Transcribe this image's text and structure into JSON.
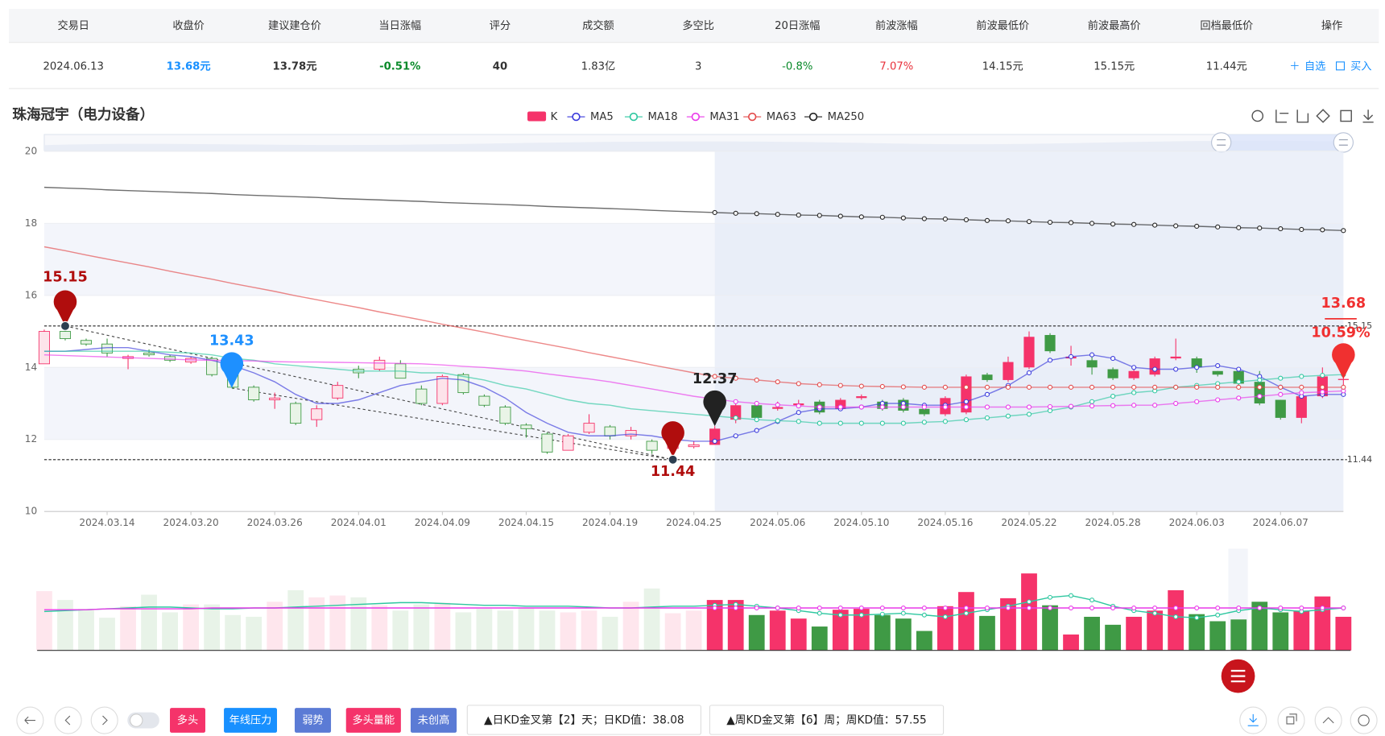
{
  "table": {
    "headers": [
      "交易日",
      "收盘价",
      "建议建仓价",
      "当日涨幅",
      "评分",
      "成交额",
      "多空比",
      "20日涨幅",
      "前波涨幅",
      "前波最低价",
      "前波最高价",
      "回档最低价",
      "操作"
    ],
    "row": [
      "2024.06.13",
      "13.68元",
      "13.78元",
      "-0.51%",
      "40",
      "1.83亿",
      "3",
      "-0.8%",
      "7.07%",
      "14.15元",
      "15.15元",
      "11.44元"
    ],
    "actions": [
      "自选",
      "买入"
    ]
  },
  "chart_data": {
    "type": "candlestick",
    "title": "珠海冠宇（电力设备）",
    "categories": [
      null,
      null,
      null,
      "2024.03.14",
      null,
      null,
      null,
      "2024.03.20",
      null,
      null,
      null,
      "2024.03.26",
      null,
      null,
      null,
      "2024.04.01",
      null,
      null,
      null,
      "2024.04.09",
      null,
      null,
      null,
      "2024.04.15",
      null,
      null,
      null,
      "2024.04.19",
      null,
      null,
      null,
      "2024.04.25",
      null,
      null,
      null,
      "2024.05.06",
      null,
      null,
      null,
      "2024.05.10",
      null,
      null,
      null,
      "2024.05.16",
      null,
      null,
      null,
      "2024.05.22",
      null,
      null,
      null,
      "2024.05.28",
      null,
      null,
      null,
      "2024.06.03",
      null,
      null,
      null,
      "2024.06.07",
      null,
      null,
      null
    ],
    "ylim": [
      10,
      20
    ],
    "yticks": [
      10,
      12,
      14,
      16,
      18,
      20
    ],
    "grid": true,
    "candles": {
      "name": "K",
      "color_up": "#f5336a",
      "color_down": "#3f9a45",
      "open": [
        14.1,
        15.0,
        14.75,
        14.65,
        14.25,
        14.4,
        14.3,
        14.15,
        14.25,
        14.0,
        13.45,
        13.1,
        13.0,
        12.55,
        13.15,
        13.95,
        13.95,
        14.1,
        13.4,
        13.0,
        13.8,
        13.2,
        12.9,
        12.4,
        12.15,
        11.7,
        12.2,
        12.35,
        12.1,
        11.95,
        11.75,
        11.8,
        11.85,
        12.55,
        12.95,
        12.85,
        12.95,
        13.05,
        12.85,
        13.15,
        13.05,
        13.1,
        12.85,
        12.7,
        12.75,
        13.8,
        13.65,
        14.0,
        14.9,
        14.25,
        14.2,
        13.95,
        13.7,
        13.8,
        14.25,
        14.25,
        13.9,
        13.9,
        13.6,
        13.1,
        12.6,
        13.2,
        13.65
      ],
      "high": [
        15.05,
        15.15,
        14.8,
        14.8,
        14.35,
        14.5,
        14.35,
        14.3,
        14.3,
        14.1,
        13.5,
        13.3,
        13.05,
        12.95,
        13.6,
        14.05,
        14.3,
        14.2,
        13.5,
        13.8,
        13.85,
        13.25,
        12.95,
        12.45,
        12.2,
        12.15,
        12.7,
        12.4,
        12.35,
        12.0,
        12.1,
        11.95,
        12.37,
        13.0,
        13.0,
        13.05,
        13.1,
        13.1,
        13.15,
        13.25,
        13.1,
        13.15,
        12.9,
        13.2,
        13.8,
        13.85,
        14.3,
        15.0,
        14.95,
        14.6,
        14.3,
        14.0,
        13.95,
        14.3,
        14.8,
        14.3,
        13.9,
        13.95,
        13.9,
        13.1,
        13.25,
        14.0,
        13.85
      ],
      "low": [
        14.1,
        14.75,
        14.6,
        14.3,
        13.95,
        14.3,
        14.15,
        14.1,
        13.75,
        13.4,
        13.05,
        12.85,
        12.4,
        12.35,
        13.1,
        13.7,
        13.9,
        13.7,
        12.95,
        12.95,
        13.25,
        12.9,
        12.4,
        12.05,
        11.6,
        11.7,
        12.15,
        12.0,
        12.0,
        11.6,
        11.44,
        11.75,
        11.85,
        12.45,
        12.55,
        12.8,
        12.9,
        12.7,
        12.8,
        13.1,
        12.8,
        12.75,
        12.65,
        12.65,
        12.7,
        13.6,
        13.6,
        13.95,
        14.4,
        14.05,
        13.8,
        13.65,
        13.65,
        13.75,
        14.2,
        13.85,
        13.75,
        13.5,
        12.95,
        12.55,
        12.45,
        13.15,
        13.5
      ],
      "close": [
        15.0,
        14.8,
        14.65,
        14.4,
        14.3,
        14.35,
        14.2,
        14.25,
        13.8,
        13.45,
        13.1,
        13.15,
        12.45,
        12.85,
        13.5,
        13.85,
        14.2,
        13.7,
        13.0,
        13.75,
        13.3,
        12.95,
        12.45,
        12.3,
        11.65,
        12.1,
        12.45,
        12.1,
        12.25,
        11.7,
        11.9,
        11.85,
        12.3,
        12.95,
        12.6,
        12.9,
        13.0,
        12.75,
        13.1,
        13.2,
        12.85,
        12.8,
        12.7,
        13.15,
        13.75,
        13.65,
        14.15,
        14.85,
        14.45,
        14.3,
        14.0,
        13.7,
        13.9,
        14.25,
        14.3,
        14.0,
        13.8,
        13.55,
        13.0,
        12.6,
        13.2,
        13.75,
        13.68
      ]
    },
    "series": [
      {
        "name": "MA5",
        "color": "#3b3bdc",
        "values": [
          14.45,
          14.45,
          14.5,
          14.55,
          14.55,
          14.45,
          14.35,
          14.3,
          14.2,
          14.05,
          13.85,
          13.6,
          13.25,
          13.0,
          13.0,
          13.1,
          13.3,
          13.5,
          13.6,
          13.7,
          13.65,
          13.45,
          13.15,
          12.75,
          12.45,
          12.2,
          12.1,
          12.1,
          12.15,
          12.1,
          12.0,
          11.95,
          11.95,
          12.1,
          12.25,
          12.5,
          12.75,
          12.85,
          12.85,
          12.9,
          13.0,
          13.0,
          12.95,
          12.95,
          13.05,
          13.25,
          13.5,
          13.85,
          14.2,
          14.3,
          14.35,
          14.25,
          14.0,
          13.95,
          13.95,
          14.0,
          14.05,
          13.95,
          13.75,
          13.45,
          13.2,
          13.25,
          13.25
        ]
      },
      {
        "name": "MA18",
        "color": "#2ec7a0",
        "values": [
          14.45,
          14.45,
          14.45,
          14.45,
          14.45,
          14.45,
          14.42,
          14.4,
          14.35,
          14.25,
          14.2,
          14.1,
          14.05,
          14.0,
          13.95,
          13.9,
          13.9,
          13.9,
          13.85,
          13.85,
          13.75,
          13.65,
          13.5,
          13.4,
          13.25,
          13.1,
          13.0,
          12.95,
          12.85,
          12.8,
          12.75,
          12.7,
          12.65,
          12.6,
          12.55,
          12.52,
          12.5,
          12.45,
          12.45,
          12.45,
          12.45,
          12.45,
          12.48,
          12.5,
          12.55,
          12.6,
          12.65,
          12.7,
          12.8,
          12.9,
          13.05,
          13.2,
          13.3,
          13.35,
          13.45,
          13.5,
          13.55,
          13.6,
          13.65,
          13.7,
          13.75,
          13.78,
          13.8
        ]
      },
      {
        "name": "MA31",
        "color": "#e93ae9",
        "values": [
          14.35,
          14.33,
          14.31,
          14.29,
          14.27,
          14.25,
          14.23,
          14.21,
          14.2,
          14.19,
          14.18,
          14.16,
          14.15,
          14.15,
          14.14,
          14.13,
          14.12,
          14.11,
          14.1,
          14.07,
          14.03,
          14.0,
          13.95,
          13.9,
          13.82,
          13.75,
          13.68,
          13.6,
          13.5,
          13.4,
          13.3,
          13.2,
          13.12,
          13.05,
          13.0,
          12.96,
          12.93,
          12.9,
          12.9,
          12.9,
          12.9,
          12.9,
          12.9,
          12.9,
          12.9,
          12.9,
          12.9,
          12.9,
          12.91,
          12.92,
          12.93,
          12.94,
          12.95,
          12.95,
          13.0,
          13.05,
          13.1,
          13.15,
          13.2,
          13.25,
          13.3,
          13.32,
          13.35
        ]
      },
      {
        "name": "MA63",
        "color": "#e34a4a",
        "values": [
          17.35,
          17.24,
          17.12,
          17.01,
          16.9,
          16.79,
          16.67,
          16.56,
          16.45,
          16.33,
          16.22,
          16.11,
          15.99,
          15.88,
          15.77,
          15.66,
          15.54,
          15.43,
          15.32,
          15.2,
          15.09,
          14.98,
          14.86,
          14.75,
          14.64,
          14.53,
          14.41,
          14.3,
          14.19,
          14.07,
          13.96,
          13.85,
          13.75,
          13.7,
          13.65,
          13.6,
          13.55,
          13.52,
          13.5,
          13.48,
          13.47,
          13.46,
          13.45,
          13.45,
          13.45,
          13.45,
          13.45,
          13.45,
          13.45,
          13.45,
          13.45,
          13.45,
          13.45,
          13.45,
          13.45,
          13.45,
          13.45,
          13.45,
          13.45,
          13.45,
          13.45,
          13.45,
          13.45
        ]
      },
      {
        "name": "MA250",
        "color": "#222222",
        "values": [
          19.0,
          18.98,
          18.96,
          18.93,
          18.91,
          18.89,
          18.87,
          18.85,
          18.83,
          18.8,
          18.78,
          18.76,
          18.74,
          18.72,
          18.69,
          18.67,
          18.65,
          18.63,
          18.61,
          18.58,
          18.56,
          18.54,
          18.52,
          18.5,
          18.47,
          18.45,
          18.43,
          18.41,
          18.39,
          18.36,
          18.34,
          18.32,
          18.3,
          18.28,
          18.27,
          18.25,
          18.23,
          18.22,
          18.2,
          18.18,
          18.17,
          18.15,
          18.13,
          18.12,
          18.1,
          18.08,
          18.07,
          18.05,
          18.03,
          18.02,
          18.0,
          17.98,
          17.97,
          17.95,
          17.93,
          17.92,
          17.9,
          17.88,
          17.87,
          17.85,
          17.83,
          17.82,
          17.8
        ]
      }
    ],
    "reference_lines": [
      15.15,
      11.44
    ],
    "annotations": [
      {
        "value": 15.15,
        "color": "#b00d0d"
      },
      {
        "value": 13.43,
        "color": "#1e90ff"
      },
      {
        "value": 11.44,
        "color": "#b00d0d"
      },
      {
        "value": 12.37,
        "color": "#222222"
      },
      {
        "value": 13.68,
        "color": "#f03030",
        "note": "10.59%"
      }
    ],
    "volume": {
      "values": [
        67,
        57,
        47,
        37,
        50,
        63,
        43,
        52,
        52,
        40,
        38,
        55,
        68,
        60,
        62,
        60,
        51,
        45,
        52,
        54,
        43,
        47,
        45,
        48,
        45,
        43,
        45,
        38,
        55,
        70,
        42,
        45,
        57,
        57,
        40,
        45,
        36,
        27,
        46,
        47,
        40,
        36,
        22,
        50,
        66,
        39,
        59,
        87,
        51,
        18,
        38,
        29,
        38,
        45,
        68,
        41,
        33,
        35,
        55,
        43,
        45,
        61,
        38
      ],
      "lines": [
        {
          "color": "#2ec7a0",
          "values": [
            44,
            45,
            46,
            47,
            48,
            49,
            49,
            48,
            47,
            47,
            48,
            48,
            49,
            50,
            51,
            52,
            53,
            54,
            54,
            53,
            52,
            51,
            51,
            50,
            50,
            50,
            49,
            48,
            48,
            49,
            50,
            50,
            51,
            52,
            50,
            48,
            45,
            42,
            40,
            40,
            41,
            42,
            40,
            38,
            42,
            46,
            50,
            55,
            60,
            62,
            57,
            50,
            45,
            42,
            38,
            37,
            40,
            45,
            48,
            46,
            44,
            46,
            48
          ]
        },
        {
          "color": "#e93ae9",
          "values": [
            46,
            46,
            46,
            47,
            47,
            47,
            47,
            47,
            48,
            48,
            48,
            48,
            48,
            48,
            48,
            48,
            48,
            48,
            48,
            48,
            48,
            48,
            48,
            48,
            48,
            48,
            48,
            48,
            48,
            48,
            48,
            48,
            48,
            48,
            48,
            48,
            48,
            48,
            48,
            48,
            48,
            48,
            48,
            48,
            48,
            48,
            48,
            48,
            48,
            48,
            48,
            48,
            48,
            48,
            48,
            48,
            48,
            48,
            48,
            48,
            48,
            48,
            48
          ]
        }
      ]
    }
  },
  "toolbar": {
    "tags": [
      "多头",
      "年线压力",
      "弱势",
      "多头量能",
      "未创高"
    ],
    "signals": [
      "▲日KD金叉第【2】天；日KD值：38.08",
      "▲周KD金叉第【6】周；周KD值：57.55"
    ]
  }
}
